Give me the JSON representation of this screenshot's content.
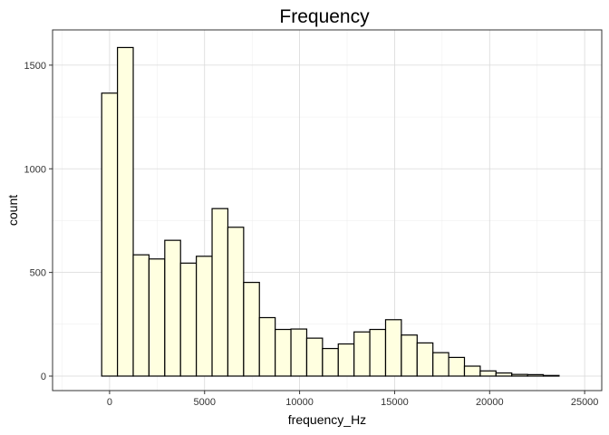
{
  "chart_data": {
    "type": "bar",
    "title": "Frequency",
    "xlabel": "frequency_Hz",
    "ylabel": "count",
    "bin_width": 830,
    "bin_start": -415,
    "values": [
      1365,
      1585,
      585,
      565,
      655,
      545,
      578,
      808,
      718,
      452,
      282,
      225,
      227,
      183,
      133,
      155,
      213,
      225,
      272,
      198,
      160,
      113,
      90,
      48,
      25,
      15,
      8,
      7,
      3
    ],
    "xlim": [
      -3000,
      25900
    ],
    "ylim": [
      -70,
      1670
    ],
    "x_ticks": [
      0,
      5000,
      10000,
      15000,
      20000,
      25000
    ],
    "x_tick_labels": [
      "0",
      "5000",
      "10000",
      "15000",
      "20000",
      "25000"
    ],
    "y_ticks": [
      0,
      500,
      1000,
      1500
    ],
    "y_tick_labels": [
      "0",
      "500",
      "1000",
      "1500"
    ],
    "grid": true,
    "colors": {
      "fill": "#ffffe0",
      "stroke": "#000000"
    }
  }
}
